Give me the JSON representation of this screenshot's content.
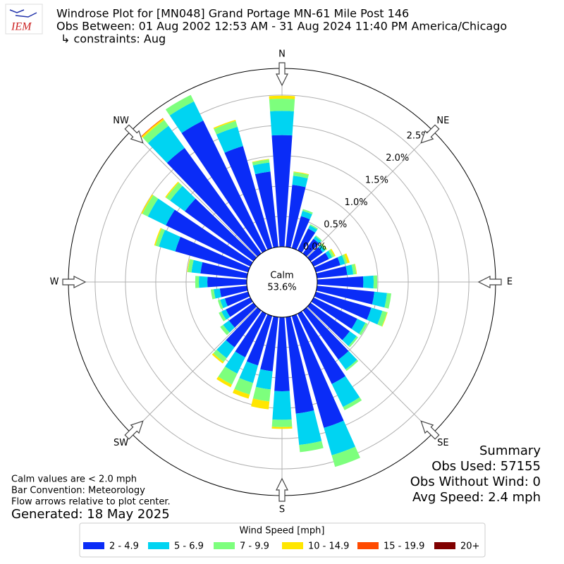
{
  "chart_data": {
    "type": "windrose",
    "title": [
      "Windrose Plot for [MN048] Grand Portage MN-61 Mile Post 146",
      "Obs Between: 01 Aug 2002 12:53 AM - 31 Aug 2024 11:40 PM America/Chicago",
      "↳ constraints: Aug"
    ],
    "logo": "IEM",
    "x": [
      0,
      10,
      20,
      30,
      40,
      50,
      60,
      70,
      80,
      90,
      100,
      110,
      120,
      130,
      140,
      150,
      160,
      170,
      180,
      190,
      200,
      210,
      220,
      230,
      240,
      250,
      260,
      270,
      280,
      290,
      300,
      310,
      320,
      330,
      340,
      350
    ],
    "compass": [
      "N",
      "NE",
      "E",
      "SE",
      "S",
      "SW",
      "W",
      "NW"
    ],
    "ylim": [
      0,
      2.94
    ],
    "yticks": [
      {
        "value": 0,
        "label": "0.0%"
      },
      {
        "value": 0.5,
        "label": "0.5%"
      },
      {
        "value": 1.0,
        "label": "1.0%"
      },
      {
        "value": 1.5,
        "label": "1.5%"
      },
      {
        "value": 2.0,
        "label": "2.0%"
      },
      {
        "value": 2.5,
        "label": "2.5%"
      }
    ],
    "grid": true,
    "calm": {
      "label": "Calm",
      "value": 53.6,
      "value_label": "53.6%"
    },
    "legend_title": "Wind Speed [mph]",
    "series": [
      {
        "name": "2 - 4.9",
        "color": "#0a2cf7",
        "values": [
          1.84,
          1.03,
          0.55,
          0.4,
          0.3,
          0.25,
          0.28,
          0.42,
          0.5,
          0.76,
          0.95,
          0.95,
          0.8,
          0.8,
          1.0,
          1.29,
          1.92,
          1.6,
          1.22,
          0.9,
          0.85,
          0.8,
          0.75,
          0.5,
          0.45,
          0.4,
          0.45,
          0.65,
          0.77,
          1.25,
          1.55,
          1.4,
          2.15,
          2.38,
          1.75,
          1.25
        ]
      },
      {
        "name": "5 - 6.9",
        "color": "#00d4f2",
        "values": [
          0.4,
          0.15,
          0.09,
          0.06,
          0.05,
          0.05,
          0.06,
          0.08,
          0.1,
          0.17,
          0.21,
          0.19,
          0.15,
          0.14,
          0.2,
          0.42,
          0.47,
          0.52,
          0.47,
          0.3,
          0.3,
          0.3,
          0.22,
          0.12,
          0.08,
          0.08,
          0.1,
          0.14,
          0.15,
          0.28,
          0.33,
          0.3,
          0.45,
          0.35,
          0.33,
          0.15
        ]
      },
      {
        "name": "7 - 9.9",
        "color": "#7dff7d",
        "values": [
          0.2,
          0.06,
          0.03,
          0.02,
          0.02,
          0.03,
          0.04,
          0.04,
          0.05,
          0.06,
          0.07,
          0.08,
          0.04,
          0.03,
          0.03,
          0.06,
          0.2,
          0.12,
          0.12,
          0.2,
          0.2,
          0.2,
          0.08,
          0.06,
          0.05,
          0.04,
          0.05,
          0.06,
          0.06,
          0.06,
          0.1,
          0.08,
          0.12,
          0.12,
          0.1,
          0.05
        ]
      },
      {
        "name": "10 - 14.9",
        "color": "#ffe600",
        "values": [
          0.05,
          0.01,
          0,
          0,
          0,
          0.01,
          0.02,
          0.04,
          0.01,
          0,
          0,
          0.01,
          0,
          0,
          0,
          0,
          0,
          0,
          0.03,
          0.13,
          0.07,
          0.05,
          0.03,
          0,
          0,
          0,
          0,
          0,
          0.01,
          0.02,
          0.02,
          0.02,
          0.03,
          0,
          0.02,
          0.01
        ]
      },
      {
        "name": "15 - 19.9",
        "color": "#ff4a00",
        "values": [
          0,
          0,
          0,
          0,
          0,
          0,
          0,
          0,
          0,
          0,
          0,
          0,
          0,
          0,
          0,
          0,
          0,
          0,
          0,
          0,
          0,
          0,
          0,
          0,
          0,
          0,
          0,
          0,
          0,
          0,
          0,
          0,
          0.01,
          0,
          0,
          0
        ]
      },
      {
        "name": "20+",
        "color": "#800000",
        "values": [
          0,
          0,
          0,
          0,
          0,
          0,
          0,
          0,
          0,
          0,
          0,
          0,
          0,
          0,
          0,
          0,
          0,
          0,
          0,
          0,
          0,
          0,
          0,
          0,
          0,
          0,
          0,
          0,
          0,
          0,
          0,
          0,
          0,
          0,
          0,
          0
        ]
      }
    ],
    "summary": [
      "Summary",
      "Obs Used: 57155",
      "Obs Without Wind: 0",
      "Avg Speed: 2.4 mph"
    ],
    "notes": [
      "Calm values are < 2.0 mph",
      "Bar Convention: Meteorology",
      "Flow arrows relative to plot center."
    ],
    "generated": "Generated: 18 May 2025"
  }
}
